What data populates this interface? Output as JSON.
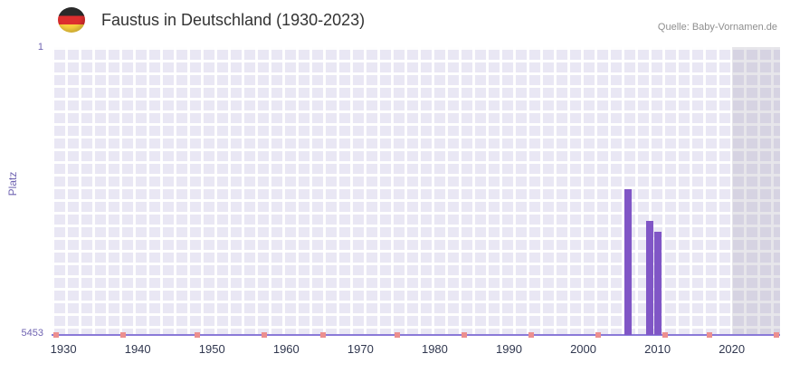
{
  "header": {
    "title": "Faustus in Deutschland (1930-2023)",
    "source": "Quelle: Baby-Vornamen.de",
    "flag_icon": "germany-flag"
  },
  "chart_data": {
    "type": "bar",
    "title": "Faustus in Deutschland (1930-2023)",
    "ylabel": "Platz",
    "y_axis": {
      "top_label": "1",
      "bottom_label": "5453",
      "min": 1,
      "max": 5453,
      "inverted": true
    },
    "x_axis": {
      "tick_labels": [
        "1930",
        "1940",
        "1950",
        "1960",
        "1970",
        "1980",
        "1990",
        "2000",
        "2010",
        "2020"
      ],
      "domain_min": 1928.4,
      "domain_max": 2026.5
    },
    "bars": [
      {
        "year": 2006,
        "rank": 2700
      },
      {
        "year": 2009,
        "rank": 3300
      },
      {
        "year": 2010,
        "rank": 3500
      }
    ],
    "baseline_marks_years": [
      1929,
      1938,
      1948,
      1957,
      1965,
      1975,
      1984,
      1993,
      2002,
      2011,
      2017,
      2026
    ],
    "highlight_band": {
      "start_year": 2020,
      "end_year": 2026.5
    },
    "grid": true,
    "colors": {
      "bar": "#8056c6",
      "baseline_mark": "#ec8f8f",
      "plot_background": "#e9e7f4",
      "grid_line": "#ffffff",
      "band_overlay": "rgba(145,143,165,0.22)",
      "axis_line": "#8a7ad8",
      "y_label": "#7064b2",
      "x_label": "#30374f"
    }
  }
}
